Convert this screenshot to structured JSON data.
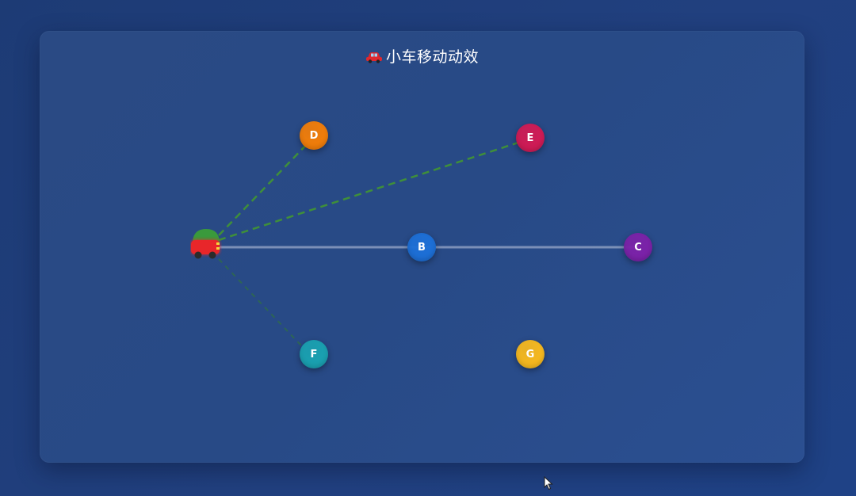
{
  "title": {
    "icon": "car-icon",
    "text": "小车移动动效"
  },
  "colors": {
    "page_bg": "#1f3f7e",
    "card_bg": "#2a4a86",
    "track": "#8fa0c0",
    "connection": "#3f8f3a",
    "car_body": "#e8262a",
    "car_dome": "#3a9a3c"
  },
  "nodes": [
    {
      "id": "B",
      "label": "B",
      "color": "#1d6fd6"
    },
    {
      "id": "C",
      "label": "C",
      "color": "#7b22a8"
    },
    {
      "id": "D",
      "label": "D",
      "color": "#f07d0a"
    },
    {
      "id": "E",
      "label": "E",
      "color": "#cf1b55"
    },
    {
      "id": "F",
      "label": "F",
      "color": "#1aa0b0"
    },
    {
      "id": "G",
      "label": "G",
      "color": "#f5b81f"
    }
  ],
  "track": {
    "from": "car",
    "via": "B",
    "to": "C"
  },
  "connections": [
    {
      "to": "D",
      "style": "dashed"
    },
    {
      "to": "E",
      "style": "dashed"
    },
    {
      "to": "F",
      "style": "dashed-faint"
    }
  ]
}
